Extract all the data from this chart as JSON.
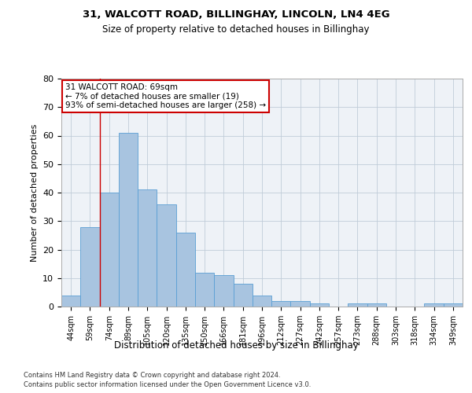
{
  "title1": "31, WALCOTT ROAD, BILLINGHAY, LINCOLN, LN4 4EG",
  "title2": "Size of property relative to detached houses in Billinghay",
  "xlabel": "Distribution of detached houses by size in Billinghay",
  "ylabel": "Number of detached properties",
  "categories": [
    "44sqm",
    "59sqm",
    "74sqm",
    "89sqm",
    "105sqm",
    "120sqm",
    "135sqm",
    "150sqm",
    "166sqm",
    "181sqm",
    "196sqm",
    "212sqm",
    "227sqm",
    "242sqm",
    "257sqm",
    "273sqm",
    "288sqm",
    "303sqm",
    "318sqm",
    "334sqm",
    "349sqm"
  ],
  "values": [
    4,
    28,
    40,
    61,
    41,
    36,
    26,
    12,
    11,
    8,
    4,
    2,
    2,
    1,
    0,
    1,
    1,
    0,
    0,
    1,
    1
  ],
  "bar_color": "#a8c4e0",
  "bar_edge_color": "#5a9fd4",
  "vline_color": "#cc0000",
  "ylim": [
    0,
    80
  ],
  "yticks": [
    0,
    10,
    20,
    30,
    40,
    50,
    60,
    70,
    80
  ],
  "annotation_text": "31 WALCOTT ROAD: 69sqm\n← 7% of detached houses are smaller (19)\n93% of semi-detached houses are larger (258) →",
  "annotation_box_color": "#ffffff",
  "annotation_box_edge": "#cc0000",
  "footer1": "Contains HM Land Registry data © Crown copyright and database right 2024.",
  "footer2": "Contains public sector information licensed under the Open Government Licence v3.0.",
  "background_color": "#eef2f7",
  "grid_color": "#c0ccd8"
}
